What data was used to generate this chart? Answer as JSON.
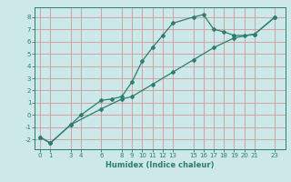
{
  "xlabel": "Humidex (Indice chaleur)",
  "line1_x": [
    0,
    1,
    3,
    4,
    6,
    7,
    8,
    9,
    10,
    11,
    12,
    13,
    15,
    16,
    17,
    18,
    19,
    20,
    21,
    23
  ],
  "line1_y": [
    -1.8,
    -2.3,
    -0.8,
    0.0,
    1.2,
    1.3,
    1.5,
    2.7,
    4.4,
    5.5,
    6.5,
    7.5,
    8.0,
    8.2,
    7.0,
    6.8,
    6.5,
    6.5,
    6.6,
    8.0
  ],
  "line2_x": [
    0,
    1,
    3,
    6,
    8,
    9,
    11,
    13,
    15,
    17,
    19,
    21,
    23
  ],
  "line2_y": [
    -1.8,
    -2.3,
    -0.8,
    0.5,
    1.3,
    1.5,
    2.5,
    3.5,
    4.5,
    5.5,
    6.3,
    6.6,
    8.0
  ],
  "line_color": "#2e7d6e",
  "bg_color": "#cce8e8",
  "grid_color_h": "#d0a0a0",
  "grid_color_v": "#d0a0a0",
  "tick_color": "#2e7d6e",
  "xlim": [
    -0.5,
    24.0
  ],
  "ylim": [
    -2.8,
    8.8
  ],
  "yticks": [
    -2,
    -1,
    0,
    1,
    2,
    3,
    4,
    5,
    6,
    7,
    8
  ],
  "xticks": [
    0,
    1,
    3,
    4,
    6,
    8,
    9,
    10,
    11,
    12,
    13,
    15,
    16,
    17,
    18,
    19,
    20,
    21,
    23
  ],
  "xlabel_fontsize": 6,
  "tick_fontsize": 5
}
